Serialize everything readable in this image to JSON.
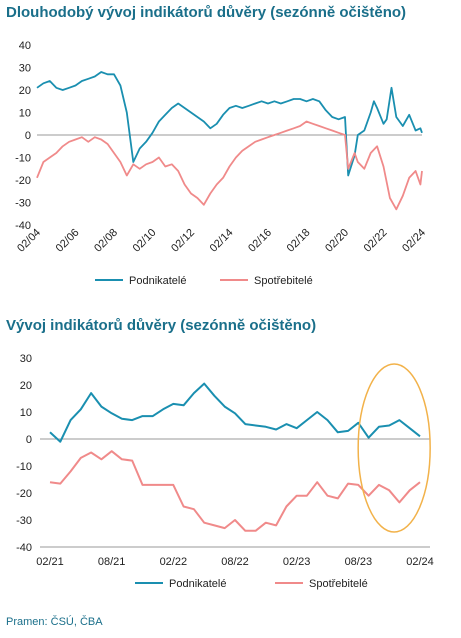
{
  "colors": {
    "business": "#1a8fb0",
    "consumer": "#f08a8a",
    "highlight": "#f2b24a",
    "title": "#1a6f8a"
  },
  "source": "Pramen: ČSÚ, ČBA",
  "chart_data": [
    {
      "type": "line",
      "title": "Dlouhodobý vývoj indikátorů důvěry (sezónně očištěno)",
      "x_tick_labels": [
        "02/04",
        "02/06",
        "02/08",
        "02/10",
        "02/12",
        "02/14",
        "02/16",
        "02/18",
        "02/20",
        "02/22",
        "02/24"
      ],
      "x_range": [
        "2004-02",
        "2024-02"
      ],
      "ylim": [
        -40,
        40
      ],
      "y_ticks": [
        -40,
        -30,
        -20,
        -10,
        0,
        10,
        20,
        30,
        40
      ],
      "legend_position": "bottom",
      "series": [
        {
          "name": "Podnikatelé",
          "points": [
            [
              "2004-02",
              21
            ],
            [
              "2004-06",
              23
            ],
            [
              "2004-10",
              24
            ],
            [
              "2005-02",
              21
            ],
            [
              "2005-06",
              20
            ],
            [
              "2005-10",
              21
            ],
            [
              "2006-02",
              22
            ],
            [
              "2006-06",
              24
            ],
            [
              "2006-10",
              25
            ],
            [
              "2007-02",
              26
            ],
            [
              "2007-06",
              28
            ],
            [
              "2007-10",
              27
            ],
            [
              "2008-02",
              27
            ],
            [
              "2008-06",
              22
            ],
            [
              "2008-10",
              10
            ],
            [
              "2009-02",
              -12
            ],
            [
              "2009-06",
              -6
            ],
            [
              "2009-10",
              -3
            ],
            [
              "2010-02",
              1
            ],
            [
              "2010-06",
              6
            ],
            [
              "2010-10",
              9
            ],
            [
              "2011-02",
              12
            ],
            [
              "2011-06",
              14
            ],
            [
              "2011-10",
              12
            ],
            [
              "2012-02",
              10
            ],
            [
              "2012-06",
              8
            ],
            [
              "2012-10",
              6
            ],
            [
              "2013-02",
              3
            ],
            [
              "2013-06",
              5
            ],
            [
              "2013-10",
              9
            ],
            [
              "2014-02",
              12
            ],
            [
              "2014-06",
              13
            ],
            [
              "2014-10",
              12
            ],
            [
              "2015-02",
              13
            ],
            [
              "2015-06",
              14
            ],
            [
              "2015-10",
              15
            ],
            [
              "2016-02",
              14
            ],
            [
              "2016-06",
              15
            ],
            [
              "2016-10",
              14
            ],
            [
              "2017-02",
              15
            ],
            [
              "2017-06",
              16
            ],
            [
              "2017-10",
              16
            ],
            [
              "2018-02",
              15
            ],
            [
              "2018-06",
              16
            ],
            [
              "2018-10",
              15
            ],
            [
              "2019-02",
              11
            ],
            [
              "2019-06",
              8
            ],
            [
              "2019-10",
              7
            ],
            [
              "2020-02",
              8
            ],
            [
              "2020-04",
              -18
            ],
            [
              "2020-08",
              -9
            ],
            [
              "2020-10",
              0
            ],
            [
              "2021-02",
              2
            ],
            [
              "2021-06",
              10
            ],
            [
              "2021-08",
              15
            ],
            [
              "2021-10",
              12
            ],
            [
              "2022-02",
              5
            ],
            [
              "2022-04",
              7
            ],
            [
              "2022-07",
              21
            ],
            [
              "2022-10",
              8
            ],
            [
              "2023-02",
              4
            ],
            [
              "2023-06",
              9
            ],
            [
              "2023-10",
              2
            ],
            [
              "2024-01",
              3
            ],
            [
              "2024-02",
              1
            ]
          ]
        },
        {
          "name": "Spotřebitelé",
          "points": [
            [
              "2004-02",
              -19
            ],
            [
              "2004-06",
              -12
            ],
            [
              "2004-10",
              -10
            ],
            [
              "2005-02",
              -8
            ],
            [
              "2005-06",
              -5
            ],
            [
              "2005-10",
              -3
            ],
            [
              "2006-02",
              -2
            ],
            [
              "2006-06",
              -1
            ],
            [
              "2006-10",
              -3
            ],
            [
              "2007-02",
              -1
            ],
            [
              "2007-06",
              -2
            ],
            [
              "2007-10",
              -4
            ],
            [
              "2008-02",
              -8
            ],
            [
              "2008-06",
              -12
            ],
            [
              "2008-10",
              -18
            ],
            [
              "2009-02",
              -13
            ],
            [
              "2009-06",
              -15
            ],
            [
              "2009-10",
              -13
            ],
            [
              "2010-02",
              -12
            ],
            [
              "2010-06",
              -10
            ],
            [
              "2010-10",
              -14
            ],
            [
              "2011-02",
              -13
            ],
            [
              "2011-06",
              -16
            ],
            [
              "2011-10",
              -22
            ],
            [
              "2012-02",
              -26
            ],
            [
              "2012-06",
              -28
            ],
            [
              "2012-10",
              -31
            ],
            [
              "2013-02",
              -26
            ],
            [
              "2013-06",
              -22
            ],
            [
              "2013-10",
              -19
            ],
            [
              "2014-02",
              -14
            ],
            [
              "2014-06",
              -10
            ],
            [
              "2014-10",
              -7
            ],
            [
              "2015-02",
              -5
            ],
            [
              "2015-06",
              -3
            ],
            [
              "2015-10",
              -2
            ],
            [
              "2016-02",
              -1
            ],
            [
              "2016-06",
              0
            ],
            [
              "2016-10",
              1
            ],
            [
              "2017-02",
              2
            ],
            [
              "2017-06",
              3
            ],
            [
              "2017-10",
              4
            ],
            [
              "2018-02",
              6
            ],
            [
              "2018-06",
              5
            ],
            [
              "2018-10",
              4
            ],
            [
              "2019-02",
              3
            ],
            [
              "2019-06",
              2
            ],
            [
              "2019-10",
              1
            ],
            [
              "2020-02",
              0
            ],
            [
              "2020-04",
              -15
            ],
            [
              "2020-08",
              -8
            ],
            [
              "2020-10",
              -12
            ],
            [
              "2021-02",
              -15
            ],
            [
              "2021-06",
              -8
            ],
            [
              "2021-10",
              -5
            ],
            [
              "2022-02",
              -14
            ],
            [
              "2022-06",
              -28
            ],
            [
              "2022-10",
              -33
            ],
            [
              "2023-02",
              -27
            ],
            [
              "2023-06",
              -19
            ],
            [
              "2023-10",
              -16
            ],
            [
              "2024-01",
              -22
            ],
            [
              "2024-02",
              -16
            ]
          ]
        }
      ]
    },
    {
      "type": "line",
      "title": "Vývoj indikátorů důvěry (sezónně očištěno)",
      "categories": [
        "02/21",
        "03/21",
        "04/21",
        "05/21",
        "06/21",
        "07/21",
        "08/21",
        "09/21",
        "10/21",
        "11/21",
        "12/21",
        "01/22",
        "02/22",
        "03/22",
        "04/22",
        "05/22",
        "06/22",
        "07/22",
        "08/22",
        "09/22",
        "10/22",
        "11/22",
        "12/22",
        "01/23",
        "02/23",
        "03/23",
        "04/23",
        "05/23",
        "06/23",
        "07/23",
        "08/23",
        "09/23",
        "10/23",
        "11/23",
        "12/23",
        "01/24",
        "02/24"
      ],
      "x_tick_labels": [
        "02/21",
        "08/21",
        "02/22",
        "08/22",
        "02/23",
        "08/23",
        "02/24"
      ],
      "ylim": [
        -40,
        30
      ],
      "y_ticks": [
        -40,
        -30,
        -20,
        -10,
        0,
        10,
        20,
        30
      ],
      "legend_position": "bottom",
      "series": [
        {
          "name": "Podnikatelé",
          "values": [
            2.5,
            -1,
            7,
            11,
            17,
            12,
            9.5,
            7.5,
            7,
            8.5,
            8.5,
            11,
            13,
            12.5,
            17,
            20.5,
            16,
            12,
            9.5,
            5.5,
            5,
            4.5,
            3.5,
            5.5,
            4,
            7,
            10,
            7,
            2.5,
            3,
            6,
            0.5,
            4.5,
            5,
            7,
            4,
            1
          ]
        },
        {
          "name": "Spotřebitelé",
          "values": [
            -16,
            -16.5,
            -12,
            -7,
            -5,
            -7.5,
            -4.5,
            -7.5,
            -8,
            -17,
            -17,
            -17,
            -17,
            -25,
            -26,
            -31,
            -32,
            -33,
            -30,
            -34,
            -34,
            -31,
            -32,
            -25,
            -21,
            -21,
            -16,
            -21,
            -22,
            -16.5,
            -17,
            -21,
            -17,
            -19,
            -23.5,
            -19,
            -16
          ]
        }
      ]
    }
  ]
}
